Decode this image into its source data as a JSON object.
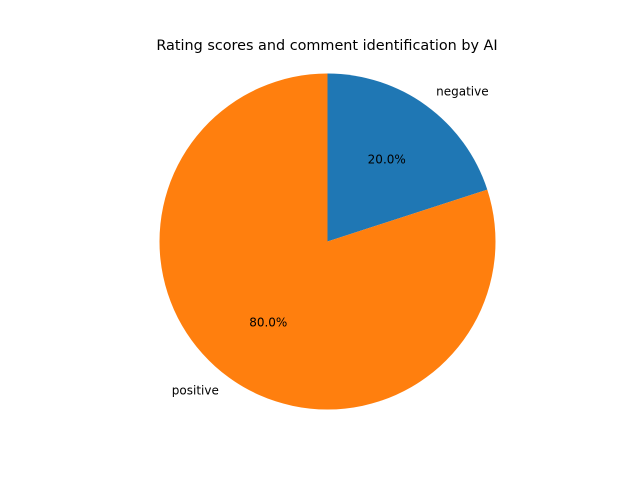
{
  "chart_data": {
    "type": "pie",
    "title": "Rating scores and comment identification by AI",
    "categories": [
      "negative",
      "positive"
    ],
    "values": [
      20.0,
      80.0
    ],
    "percent_labels": [
      "20.0%",
      "80.0%"
    ],
    "colors": [
      "#1f77b4",
      "#ff7f0e"
    ],
    "start_angle_deg": 90,
    "direction": "clockwise"
  }
}
